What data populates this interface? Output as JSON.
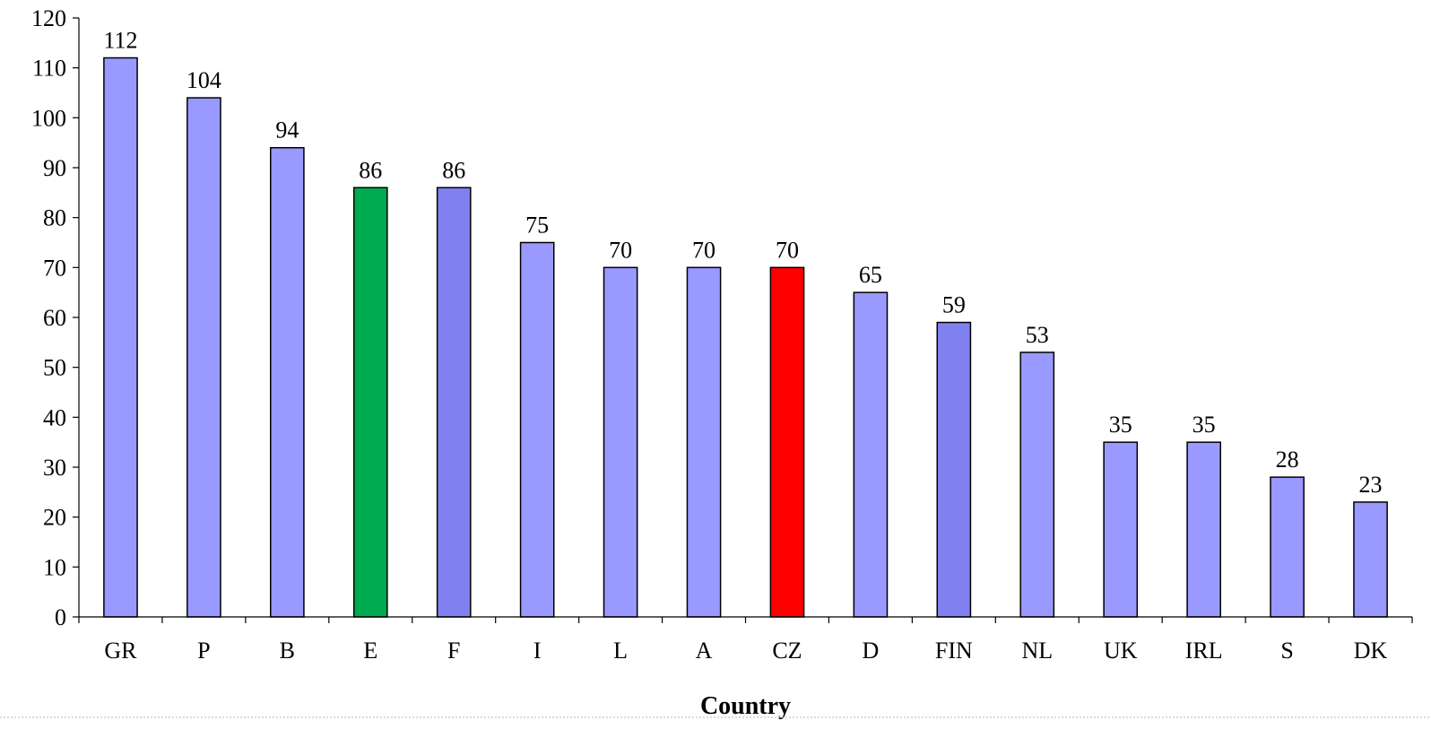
{
  "chart_data": {
    "type": "bar",
    "title": "",
    "xlabel": "Country",
    "ylabel": "",
    "ylim": [
      0,
      120
    ],
    "yticks": [
      0,
      10,
      20,
      30,
      40,
      50,
      60,
      70,
      80,
      90,
      100,
      110,
      120
    ],
    "grid": false,
    "categories": [
      "GR",
      "P",
      "B",
      "E",
      "F",
      "I",
      "L",
      "A",
      "CZ",
      "D",
      "FIN",
      "NL",
      "UK",
      "IRL",
      "S",
      "DK"
    ],
    "values": [
      112,
      104,
      94,
      86,
      86,
      75,
      70,
      70,
      70,
      65,
      59,
      53,
      35,
      35,
      28,
      23
    ],
    "data_labels": [
      "112",
      "104",
      "94",
      "86",
      "86",
      "75",
      "70",
      "70",
      "70",
      "65",
      "59",
      "53",
      "35",
      "35",
      "28",
      "23"
    ],
    "colors": {
      "default": "#9999ff",
      "E": "#00aa50",
      "F": "#8080f0",
      "CZ": "#ff0000",
      "FIN": "#8080f0"
    }
  }
}
